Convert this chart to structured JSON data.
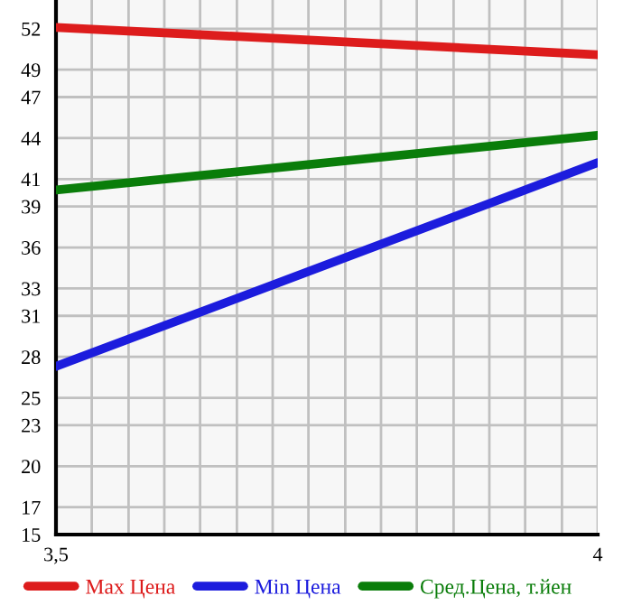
{
  "chart_data": {
    "type": "line",
    "x": [
      3.5,
      4
    ],
    "series": [
      {
        "name": "Max Цена",
        "color": "#dd1c1c",
        "values": [
          52.1,
          50.1
        ]
      },
      {
        "name": "Min Цена",
        "color": "#1c1cdd",
        "values": [
          27.3,
          42.2
        ]
      },
      {
        "name": "Сред.Цена, т.йен",
        "color": "#0a7d0a",
        "values": [
          40.2,
          44.2
        ]
      }
    ],
    "xlim": [
      3.5,
      4
    ],
    "xticks": [
      {
        "value": 3.5,
        "label": "3,5"
      },
      {
        "value": 3.533,
        "label": null
      },
      {
        "value": 3.567,
        "label": null
      },
      {
        "value": 3.6,
        "label": null
      },
      {
        "value": 3.633,
        "label": null
      },
      {
        "value": 3.667,
        "label": null
      },
      {
        "value": 3.7,
        "label": null
      },
      {
        "value": 3.733,
        "label": null
      },
      {
        "value": 3.767,
        "label": null
      },
      {
        "value": 3.8,
        "label": null
      },
      {
        "value": 3.833,
        "label": null
      },
      {
        "value": 3.867,
        "label": null
      },
      {
        "value": 3.9,
        "label": null
      },
      {
        "value": 3.933,
        "label": null
      },
      {
        "value": 3.967,
        "label": null
      },
      4
    ],
    "ylim": [
      15,
      54.1
    ],
    "yticks": [
      15,
      17,
      20,
      23,
      25,
      28,
      31,
      33,
      36,
      39,
      41,
      44,
      47,
      49,
      52
    ],
    "grid": true,
    "legend": "bottom",
    "marker": "none",
    "line_style": "solid"
  }
}
